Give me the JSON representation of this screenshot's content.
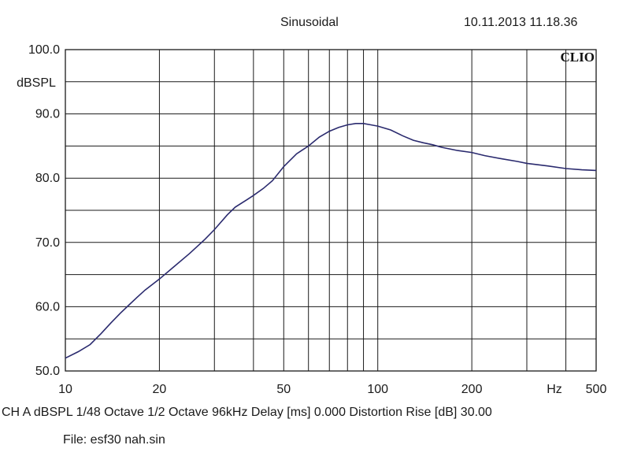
{
  "header": {
    "title": "Sinusoidal",
    "datetime": "10.11.2013 11.18.36"
  },
  "logo": "CLIO",
  "footer": {
    "settings": "CH A   dBSPL   1/48 Octave   1/2 Octave   96kHz   Delay [ms] 0.000   Distortion Rise [dB] 30.00",
    "file": "File:  esf30 nah.sin"
  },
  "colors": {
    "curve": "#2a2a6e",
    "grid": "#1a1a1a"
  },
  "chart_data": {
    "type": "line",
    "title": "Sinusoidal",
    "xlabel": "Hz",
    "ylabel": "dBSPL",
    "xscale": "log",
    "xlim": [
      10,
      500
    ],
    "ylim": [
      50,
      100
    ],
    "grid": true,
    "xticks": [
      10,
      20,
      30,
      40,
      50,
      60,
      70,
      80,
      90,
      100,
      200,
      300,
      400,
      500
    ],
    "xtick_labels": [
      {
        "x": 10,
        "label": "10"
      },
      {
        "x": 20,
        "label": "20"
      },
      {
        "x": 50,
        "label": "50"
      },
      {
        "x": 100,
        "label": "100"
      },
      {
        "x": 200,
        "label": "200"
      },
      {
        "x": 500,
        "label": "500"
      }
    ],
    "yticks": [
      50,
      55,
      60,
      65,
      70,
      75,
      80,
      85,
      90,
      95,
      100
    ],
    "ytick_labels": [
      {
        "y": 100,
        "label": "100.0"
      },
      {
        "y": 90,
        "label": "90.0"
      },
      {
        "y": 80,
        "label": "80.0"
      },
      {
        "y": 70,
        "label": "70.0"
      },
      {
        "y": 60,
        "label": "60.0"
      },
      {
        "y": 50,
        "label": "50.0"
      }
    ],
    "series": [
      {
        "x": [
          10,
          11,
          12,
          13,
          14,
          15,
          16,
          17,
          18,
          20,
          22,
          25,
          28,
          30,
          33,
          35,
          38,
          40,
          43,
          46,
          50,
          55,
          60,
          65,
          70,
          75,
          80,
          85,
          90,
          95,
          100,
          110,
          120,
          130,
          140,
          150,
          160,
          180,
          200,
          220,
          250,
          280,
          300,
          350,
          400,
          450,
          500
        ],
        "y": [
          52.0,
          53.0,
          54.1,
          55.8,
          57.5,
          59.0,
          60.3,
          61.5,
          62.6,
          64.3,
          66.0,
          68.3,
          70.5,
          72.0,
          74.3,
          75.5,
          76.6,
          77.3,
          78.4,
          79.6,
          81.8,
          83.8,
          85.0,
          86.4,
          87.3,
          87.9,
          88.3,
          88.5,
          88.5,
          88.3,
          88.1,
          87.5,
          86.6,
          85.9,
          85.5,
          85.2,
          84.8,
          84.3,
          84.0,
          83.5,
          83.0,
          82.6,
          82.3,
          81.9,
          81.5,
          81.3,
          81.2
        ]
      }
    ]
  }
}
